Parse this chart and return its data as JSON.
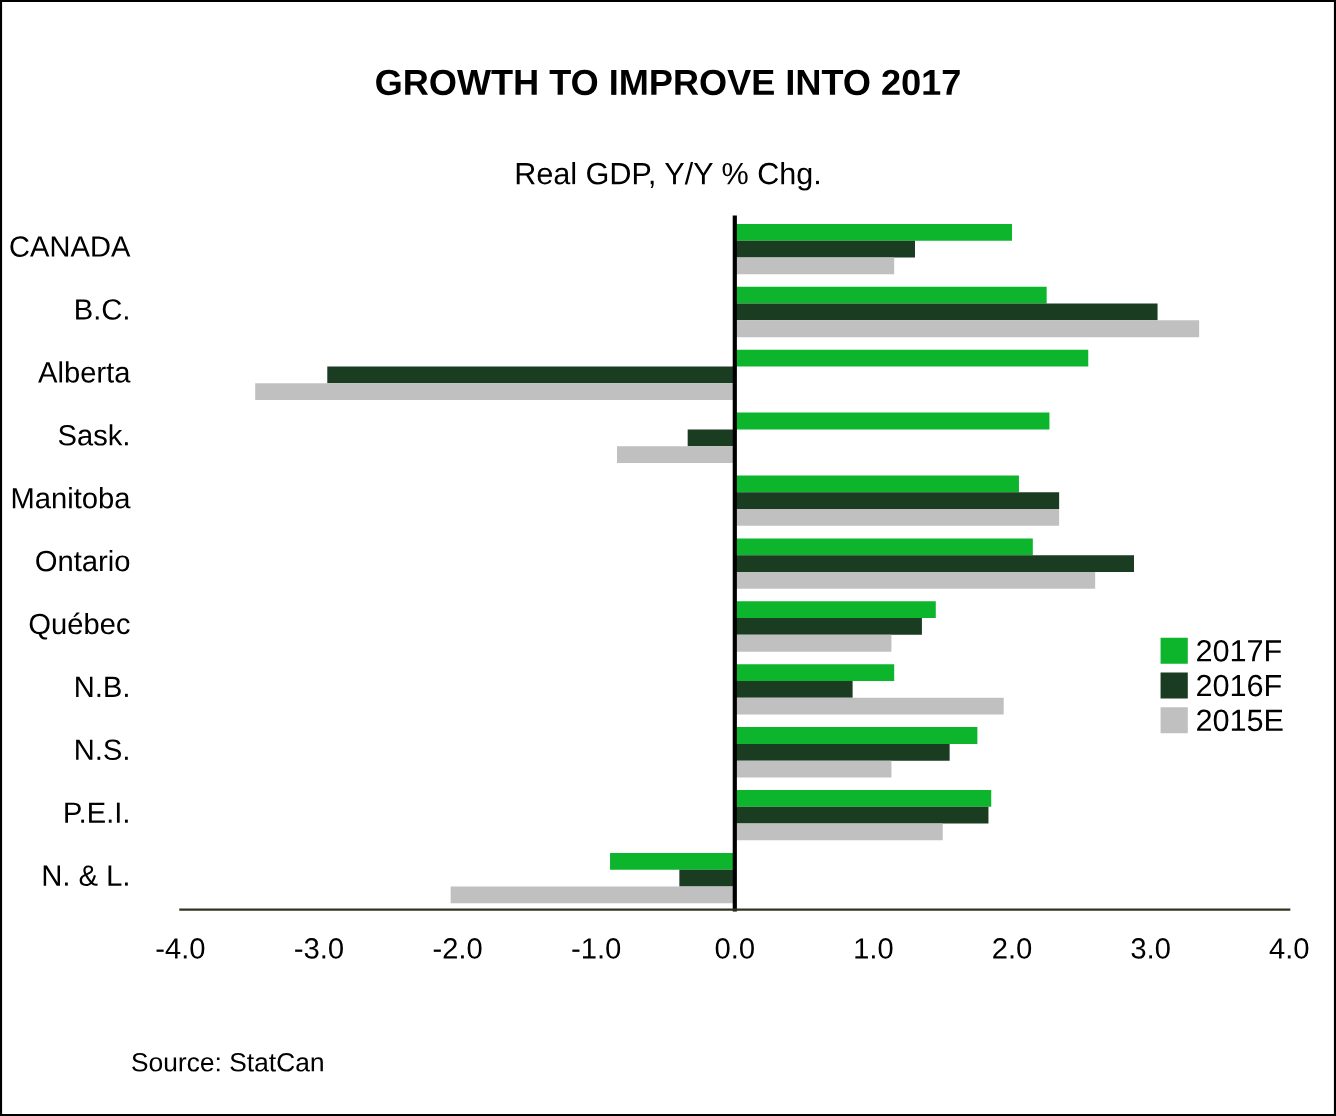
{
  "chart_data": {
    "type": "bar",
    "orientation": "horizontal",
    "title": "GROWTH TO IMPROVE INTO 2017",
    "subtitle": "Real GDP, Y/Y % Chg.",
    "categories": [
      "CANADA",
      "B.C.",
      "Alberta",
      "Sask.",
      "Manitoba",
      "Ontario",
      "Québec",
      "N.B.",
      "N.S.",
      "P.E.I.",
      "N. & L."
    ],
    "series": [
      {
        "name": "2017F",
        "color": "#0cb52c",
        "values": [
          2.0,
          2.25,
          2.55,
          2.27,
          2.05,
          2.15,
          1.45,
          1.15,
          1.75,
          1.85,
          -0.9
        ]
      },
      {
        "name": "2016F",
        "color": "#1a3d22",
        "values": [
          1.3,
          3.05,
          -2.94,
          -0.34,
          2.34,
          2.88,
          1.35,
          0.85,
          1.55,
          1.83,
          -0.4
        ]
      },
      {
        "name": "2015E",
        "color": "#c0c0c0",
        "values": [
          1.15,
          3.35,
          -3.46,
          -0.85,
          2.34,
          2.6,
          1.13,
          1.94,
          1.13,
          1.5,
          -2.05
        ]
      }
    ],
    "xlim": [
      -4.0,
      4.0
    ],
    "xticks": [
      {
        "value": -4,
        "label": "-4.0"
      },
      {
        "value": -3,
        "label": "-3.0"
      },
      {
        "value": -2,
        "label": "-2.0"
      },
      {
        "value": -1,
        "label": "-1.0"
      },
      {
        "value": 0,
        "label": "0.0"
      },
      {
        "value": 1,
        "label": "1.0"
      },
      {
        "value": 2,
        "label": "2.0"
      },
      {
        "value": 3,
        "label": "3.0"
      },
      {
        "value": 4,
        "label": "4.0"
      }
    ],
    "legend": "right",
    "annotations": [
      "Source: StatCan"
    ]
  }
}
